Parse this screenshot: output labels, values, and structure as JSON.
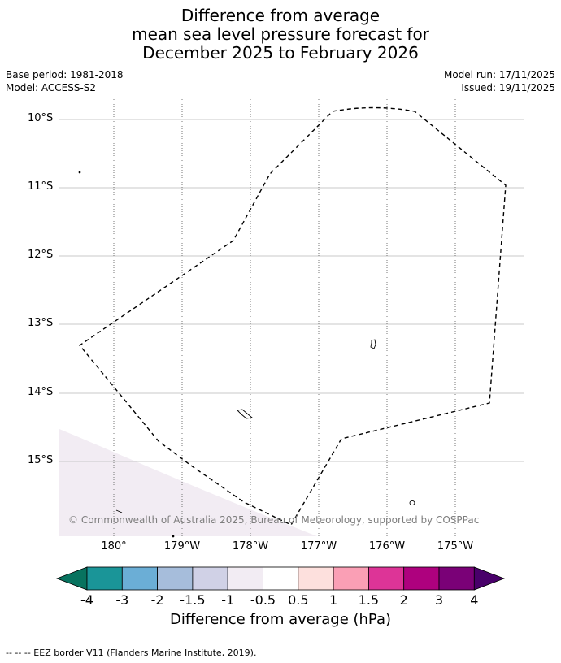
{
  "title": {
    "line1": "Difference from average",
    "line2": "mean sea level pressure forecast for",
    "line3": "December 2025 to February 2026"
  },
  "meta": {
    "base_period": "Base period: 1981-2018",
    "model": "Model: ACCESS-S2",
    "model_run": "Model run: 17/11/2025",
    "issued": "Issued: 19/11/2025"
  },
  "map": {
    "latitude_labels": [
      "10°S",
      "11°S",
      "12°S",
      "13°S",
      "14°S",
      "15°S"
    ],
    "longitude_labels": [
      "180°",
      "179°W",
      "178°W",
      "177°W",
      "176°W",
      "175°W"
    ],
    "copyright": "© Commonwealth of Australia 2025, Bureau of Meteorology, supported by COSPPac",
    "shaded_anomaly_color": "#f2ecf3"
  },
  "colorbar": {
    "title": "Difference from average (hPa)",
    "tick_labels": [
      "-4",
      "-3",
      "-2",
      "-1.5",
      "-1",
      "-0.5",
      "0.5",
      "1",
      "1.5",
      "2",
      "3",
      "4"
    ],
    "colors": [
      "#08735f",
      "#1a9598",
      "#6baed6",
      "#a6bddb",
      "#d0d1e6",
      "#f2ecf3",
      "#ffffff",
      "#fde0dd",
      "#fa9fb5",
      "#dd3497",
      "#ae017e",
      "#7a0177",
      "#49006a"
    ]
  },
  "footer": {
    "legend_text": "--  --  -- EEZ border V11 (Flanders Marine Institute, 2019)."
  }
}
